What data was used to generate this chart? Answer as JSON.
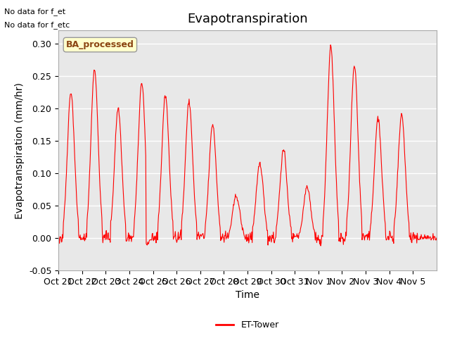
{
  "title": "Evapotranspiration",
  "ylabel": "Evapotranspiration (mm/hr)",
  "xlabel": "Time",
  "ylim": [
    -0.05,
    0.32
  ],
  "yticks": [
    -0.05,
    0.0,
    0.05,
    0.1,
    0.15,
    0.2,
    0.25,
    0.3
  ],
  "line_color": "red",
  "line_width": 0.8,
  "background_color": "#ffffff",
  "plot_bg_color": "#e8e8e8",
  "grid_color": "#ffffff",
  "legend_label": "ET-Tower",
  "legend_box_label": "BA_processed",
  "no_data_text1": "No data for f_et",
  "no_data_text2": "No data for f_etc",
  "x_tick_labels": [
    "Oct 21",
    "Oct 22",
    "Oct 23",
    "Oct 24",
    "Oct 25",
    "Oct 26",
    "Oct 27",
    "Oct 28",
    "Oct 29",
    "Oct 30",
    "Oct 31",
    "Nov 1",
    "Nov 2",
    "Nov 3",
    "Nov 4",
    "Nov 5"
  ],
  "x_tick_positions": [
    0,
    1,
    2,
    3,
    4,
    5,
    6,
    7,
    8,
    9,
    10,
    11,
    12,
    13,
    14,
    15
  ],
  "peak_heights": [
    0.225,
    0.26,
    0.2,
    0.24,
    0.22,
    0.21,
    0.175,
    0.065,
    0.115,
    0.135,
    0.08,
    0.295,
    0.265,
    0.185,
    0.19,
    0.0
  ],
  "title_fontsize": 13,
  "axis_fontsize": 10,
  "tick_fontsize": 9
}
